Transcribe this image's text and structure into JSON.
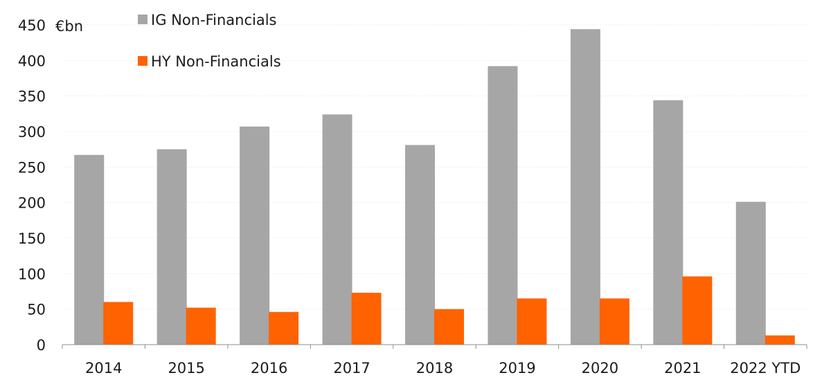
{
  "chart_data": {
    "type": "bar",
    "unit_label": "€bn",
    "categories": [
      "2014",
      "2015",
      "2016",
      "2017",
      "2018",
      "2019",
      "2020",
      "2021",
      "2022 YTD"
    ],
    "series": [
      {
        "name": "IG Non-Financials",
        "color": "#a6a6a6",
        "values": [
          267,
          275,
          307,
          324,
          281,
          392,
          444,
          344,
          201
        ]
      },
      {
        "name": "HY Non-Financials",
        "color": "#ff6200",
        "values": [
          60,
          52,
          46,
          73,
          50,
          65,
          65,
          96,
          13
        ]
      }
    ],
    "ylim": [
      0,
      450
    ],
    "yticks": [
      0,
      50,
      100,
      150,
      200,
      250,
      300,
      350,
      400,
      450
    ],
    "grid": true,
    "legend_position": "top-left"
  }
}
